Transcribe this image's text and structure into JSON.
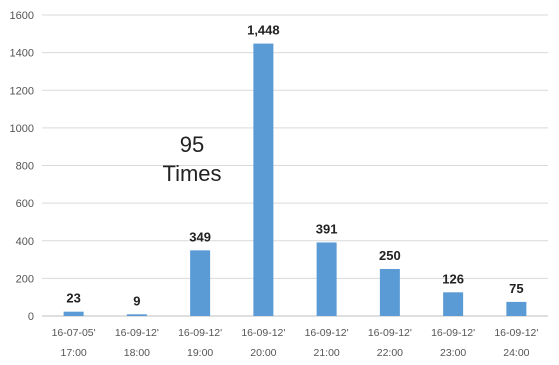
{
  "chart_data": {
    "type": "bar",
    "categories": [
      [
        "16-07-05'",
        "17:00"
      ],
      [
        "16-09-12'",
        "18:00"
      ],
      [
        "16-09-12'",
        "19:00"
      ],
      [
        "16-09-12'",
        "20:00"
      ],
      [
        "16-09-12'",
        "21:00"
      ],
      [
        "16-09-12'",
        "22:00"
      ],
      [
        "16-09-12'",
        "23:00"
      ],
      [
        "16-09-12'",
        "24:00"
      ]
    ],
    "values": [
      23,
      9,
      349,
      1448,
      391,
      250,
      126,
      75
    ],
    "data_labels": [
      "23",
      "9",
      "349",
      "1,448",
      "391",
      "250",
      "126",
      "75"
    ],
    "ylim": [
      0,
      1600
    ],
    "yticks": [
      0,
      200,
      400,
      600,
      800,
      1000,
      1200,
      1400,
      1600
    ],
    "grid": true,
    "legend": "none",
    "title": "",
    "xlabel": "",
    "ylabel": "",
    "annotation": [
      "95",
      "Times"
    ],
    "bar_color": "#5b9bd5",
    "grid_color": "#d9d9d9"
  }
}
